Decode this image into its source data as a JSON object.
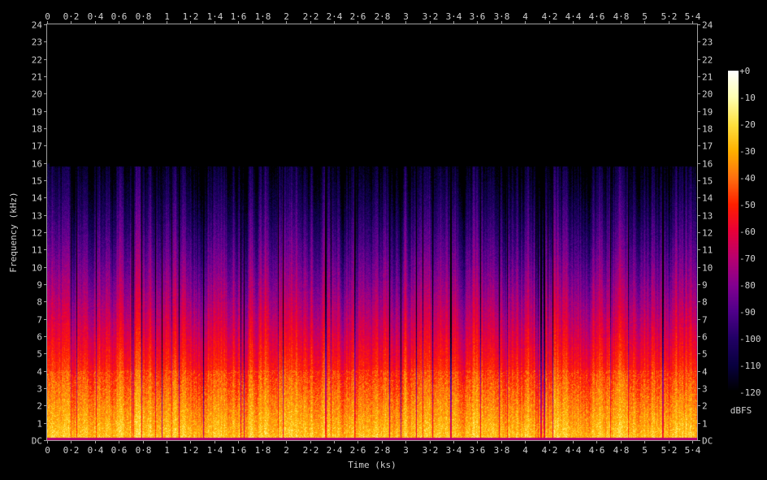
{
  "chart_data": {
    "type": "heatmap",
    "xlabel": "Time (ks)",
    "ylabel": "Frequency (kHz)",
    "xlim": [
      0,
      5.44
    ],
    "ylim": [
      0,
      24
    ],
    "x_ticks": [
      "0",
      "0·2",
      "0·4",
      "0·6",
      "0·8",
      "1",
      "1·2",
      "1·4",
      "1·6",
      "1·8",
      "2",
      "2·2",
      "2·4",
      "2·6",
      "2·8",
      "3",
      "3·2",
      "3·4",
      "3·6",
      "3·8",
      "4",
      "4·2",
      "4·4",
      "4·6",
      "4·8",
      "5",
      "5·2",
      "5·4"
    ],
    "y_ticks": [
      "DC",
      "1",
      "2",
      "3",
      "4",
      "5",
      "6",
      "7",
      "8",
      "9",
      "10",
      "11",
      "12",
      "13",
      "14",
      "15",
      "16",
      "17",
      "18",
      "19",
      "20",
      "21",
      "22",
      "23",
      "24"
    ],
    "content_upper_frequency_khz": 15.8,
    "colorbar": {
      "label": "dBFS",
      "range": [
        -120,
        0
      ],
      "ticks": [
        "+0",
        "-10",
        "-20",
        "-30",
        "-40",
        "-50",
        "-60",
        "-70",
        "-80",
        "-90",
        "-100",
        "-110",
        "-120"
      ],
      "colors": [
        "#ffffff",
        "#ffffb0",
        "#ffe040",
        "#ffb000",
        "#ff7010",
        "#ff2000",
        "#e8003a",
        "#b80070",
        "#840090",
        "#50008a",
        "#220066",
        "#090040",
        "#000000"
      ]
    },
    "grid": false,
    "legend": "right"
  },
  "colors": {
    "background": "#000000",
    "axis": "#a0a0a0",
    "text": "#d0d0d0"
  }
}
